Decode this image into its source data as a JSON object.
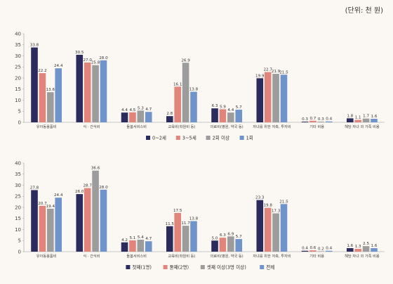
{
  "unit_label": "(단위: 천 원)",
  "colors": [
    "#2b2b5e",
    "#e0847c",
    "#9c9c9c",
    "#6f94cc"
  ],
  "chart_data": [
    {
      "type": "bar",
      "categories": [
        "유아동용품비",
        "식 · 간식비",
        "돌봄서비스비",
        "교육비(학원비 등)",
        "의료비(병원, 약국 등)",
        "자녀를 위한 저축, 투자비",
        "기타 비용",
        "해당 자녀 외 가족 비용"
      ],
      "series": [
        {
          "name": "0~2세",
          "values": [
            33.8,
            30.5,
            4.4,
            2.8,
            6.3,
            19.9,
            0.3,
            1.8
          ]
        },
        {
          "name": "3~5세",
          "values": [
            22.2,
            27.0,
            4.5,
            16.1,
            5.9,
            22.7,
            0.7,
            1.1
          ]
        },
        {
          "name": "2회 이상",
          "values": [
            13.6,
            25.8,
            5.3,
            26.9,
            4.4,
            21.9,
            0.3,
            1.7
          ]
        },
        {
          "name": "1회",
          "values": [
            24.4,
            28.0,
            4.7,
            13.8,
            5.7,
            21.5,
            0.4,
            1.6
          ]
        }
      ],
      "ylim": [
        0,
        40
      ],
      "yticks": [
        0,
        5,
        10,
        15,
        20,
        25,
        30,
        35,
        40
      ],
      "legend_position": "bottom"
    },
    {
      "type": "bar",
      "categories": [
        "유아동용품비",
        "식 · 간식비",
        "돌봄서비스비",
        "교육비(학원비 등)",
        "의료비(병원, 약국 등)",
        "자녀를 위한 저축, 투자비",
        "기타 비용",
        "해당 자녀 외 가족 비용"
      ],
      "series": [
        {
          "name": "첫째(1명)",
          "values": [
            27.8,
            26.0,
            4.2,
            11.5,
            5.0,
            23.3,
            0.4,
            1.6
          ]
        },
        {
          "name": "둘째(2명)",
          "values": [
            20.7,
            28.7,
            5.1,
            17.5,
            6.3,
            19.8,
            0.6,
            1.3
          ]
        },
        {
          "name": "셋째 이상(3명 이상)",
          "values": [
            19.4,
            36.6,
            5.4,
            11.7,
            6.9,
            17.3,
            0.2,
            2.5
          ]
        },
        {
          "name": "전체",
          "values": [
            24.4,
            28.0,
            4.7,
            13.8,
            5.7,
            21.5,
            0.4,
            1.6
          ]
        }
      ],
      "ylim": [
        0,
        40
      ],
      "yticks": [
        0,
        5,
        10,
        15,
        20,
        25,
        30,
        35,
        40
      ],
      "legend_position": "bottom"
    }
  ]
}
